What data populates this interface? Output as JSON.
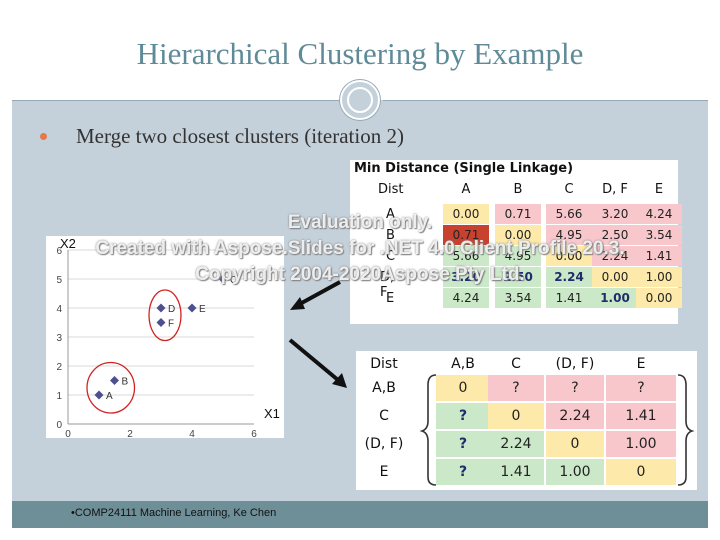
{
  "slide": {
    "title": "Hierarchical Clustering by Example",
    "bullet": "Merge two closest clusters (iteration 2)",
    "footer": "•COMP24111  Machine Learning, Ke Chen"
  },
  "watermark": {
    "line1": "Evaluation only.",
    "line2": "Created with Aspose.Slides for .NET 4.0 Client Profile 20.3.",
    "line3": "Copyright 2004-2020Aspose Pty Ltd."
  },
  "table1": {
    "title": "Min Distance (Single Linkage)",
    "corner": "Dist",
    "columns": [
      "A",
      "B",
      "C",
      "D, F",
      "E"
    ],
    "rows": [
      {
        "label": "A",
        "values": [
          "0.00",
          "0.71",
          "5.66",
          "3.20",
          "4.24"
        ]
      },
      {
        "label": "B",
        "values": [
          "0.71",
          "0.00",
          "4.95",
          "2.50",
          "3.54"
        ]
      },
      {
        "label": "C",
        "values": [
          "5.66",
          "4.95",
          "0.00",
          "2.24",
          "1.41"
        ]
      },
      {
        "label": "D, F",
        "values": [
          "3.20",
          "2.50",
          "2.24",
          "0.00",
          "1.00"
        ]
      },
      {
        "label": "E",
        "values": [
          "4.24",
          "3.54",
          "1.41",
          "1.00",
          "0.00"
        ]
      }
    ],
    "colors": {
      "diag": "#fde9a9",
      "upper": "#f7c7cc",
      "lower": "#cbe8c8",
      "min": "#c8402e"
    }
  },
  "table2": {
    "corner": "Dist",
    "columns": [
      "A,B",
      "C",
      "(D, F)",
      "E"
    ],
    "rows": [
      {
        "label": "A,B",
        "values": [
          "0",
          "?",
          "?",
          "?"
        ]
      },
      {
        "label": "C",
        "values": [
          "?",
          "0",
          "2.24",
          "1.41"
        ]
      },
      {
        "label": "(D, F)",
        "values": [
          "?",
          "2.24",
          "0",
          "1.00"
        ]
      },
      {
        "label": "E",
        "values": [
          "?",
          "1.41",
          "1.00",
          "0"
        ]
      }
    ]
  },
  "chart_data": {
    "type": "scatter",
    "xlabel": "X1",
    "ylabel": "X2",
    "xlim": [
      0,
      6
    ],
    "ylim": [
      0,
      6
    ],
    "xticks": [
      0,
      2,
      4,
      6
    ],
    "yticks": [
      0,
      1,
      2,
      3,
      4,
      5,
      6
    ],
    "points": [
      {
        "label": "A",
        "x": 1.0,
        "y": 1.0
      },
      {
        "label": "B",
        "x": 1.5,
        "y": 1.5
      },
      {
        "label": "C",
        "x": 5.0,
        "y": 5.0
      },
      {
        "label": "D",
        "x": 3.0,
        "y": 4.0
      },
      {
        "label": "E",
        "x": 4.0,
        "y": 4.0
      },
      {
        "label": "F",
        "x": 3.0,
        "y": 3.5
      }
    ],
    "clusters": [
      [
        "A",
        "B"
      ],
      [
        "D",
        "F"
      ]
    ],
    "colors": {
      "marker": "#4e4f8f",
      "cluster_ring": "#d22222",
      "grid": "#d9d9d9"
    }
  }
}
